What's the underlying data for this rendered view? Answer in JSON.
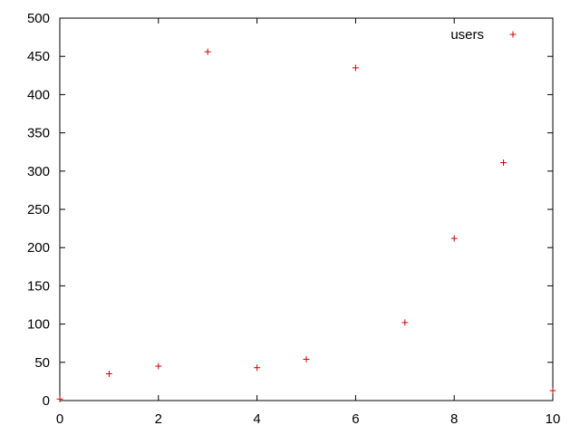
{
  "chart_data": {
    "type": "scatter",
    "title": "",
    "xlabel": "",
    "ylabel": "",
    "xlim": [
      0,
      10
    ],
    "ylim": [
      0,
      500
    ],
    "x_ticks": [
      0,
      2,
      4,
      6,
      8,
      10
    ],
    "y_ticks": [
      0,
      50,
      100,
      150,
      200,
      250,
      300,
      350,
      400,
      450,
      500
    ],
    "grid": false,
    "legend_position": "top-right",
    "marker": "plus",
    "series": [
      {
        "name": "users",
        "color": "#cc0000",
        "x": [
          0,
          1,
          2,
          3,
          4,
          5,
          6,
          7,
          8,
          9,
          10
        ],
        "y": [
          2,
          35,
          45,
          456,
          43,
          54,
          435,
          102,
          212,
          311,
          13
        ]
      }
    ]
  }
}
